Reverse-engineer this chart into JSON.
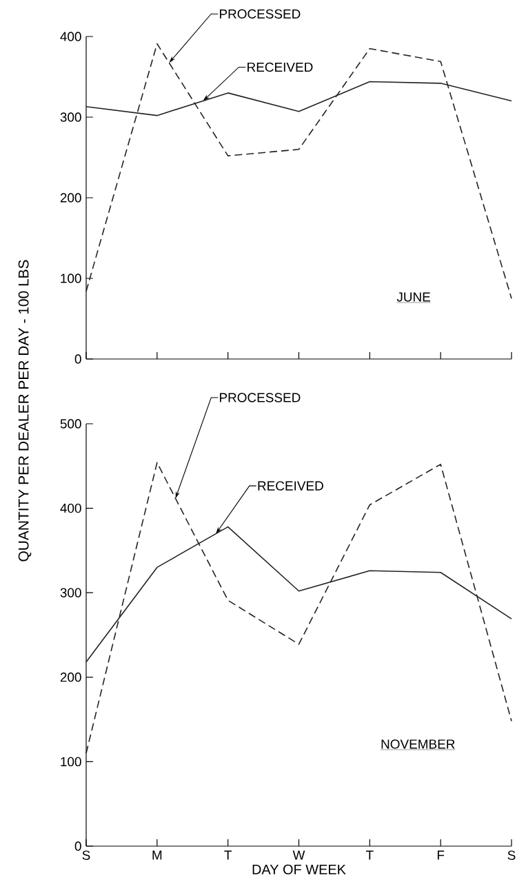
{
  "chart_data": [
    {
      "type": "line",
      "title": "JUNE",
      "ylabel": "QUANTITY PER DEALER PER DAY - 100 LBS",
      "categories": [
        null,
        null,
        null,
        null,
        null,
        null,
        null
      ],
      "tick_labels": "y",
      "ylim": [
        0,
        400
      ],
      "yticks": [
        0,
        100,
        200,
        300,
        400
      ],
      "series": [
        {
          "name": "PROCESSED",
          "color": "#222222",
          "line_style": "dashed",
          "values": [
            84,
            391,
            252,
            260,
            385,
            369,
            75
          ]
        },
        {
          "name": "RECEIVED",
          "color": "#222222",
          "line_style": "solid",
          "values": [
            313,
            302,
            330,
            307,
            344,
            342,
            320
          ]
        }
      ]
    },
    {
      "type": "line",
      "title": "NOVEMBER",
      "xlabel": "DAY OF WEEK",
      "categories": [
        "S",
        "M",
        "T",
        "W",
        "T",
        "F",
        "S"
      ],
      "ylim": [
        0,
        500
      ],
      "yticks": [
        0,
        100,
        200,
        300,
        400,
        500
      ],
      "series": [
        {
          "name": "PROCESSED",
          "color": "#222222",
          "line_style": "dashed",
          "values": [
            110,
            454,
            291,
            239,
            404,
            452,
            148
          ]
        },
        {
          "name": "RECEIVED",
          "color": "#222222",
          "line_style": "solid",
          "values": [
            218,
            330,
            378,
            302,
            326,
            324,
            269
          ]
        }
      ]
    }
  ]
}
